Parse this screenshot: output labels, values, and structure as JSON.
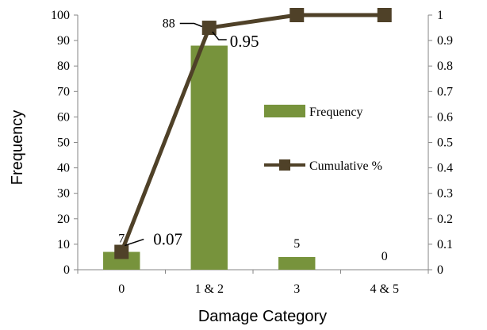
{
  "chart_data": {
    "type": "bar",
    "title": "",
    "xlabel": "Damage Category",
    "ylabel": "Frequency",
    "categories": [
      "0",
      "1 & 2",
      "3",
      "4 & 5"
    ],
    "ylim": [
      0,
      100
    ],
    "y_ticks": [
      "0",
      "10",
      "20",
      "30",
      "40",
      "50",
      "60",
      "70",
      "80",
      "90",
      "100"
    ],
    "y2lim": [
      0,
      1
    ],
    "y2_ticks": [
      "0",
      "0.1",
      "0.2",
      "0.3",
      "0.4",
      "0.5",
      "0.6",
      "0.7",
      "0.8",
      "0.9",
      "1"
    ],
    "grid": false,
    "legend_position": "center-right",
    "series": [
      {
        "name": "Frequency",
        "type": "bar",
        "axis": "left",
        "color": "#77933c",
        "values": [
          7,
          88,
          5,
          0
        ],
        "data_labels": [
          "7",
          "88",
          "5",
          "0"
        ]
      },
      {
        "name": "Cumulative %",
        "type": "line",
        "axis": "right",
        "color": "#4f4128",
        "marker": "square",
        "values": [
          0.07,
          0.95,
          1.0,
          1.0
        ],
        "data_labels": [
          "0.07",
          "0.95",
          "",
          ""
        ]
      }
    ]
  }
}
